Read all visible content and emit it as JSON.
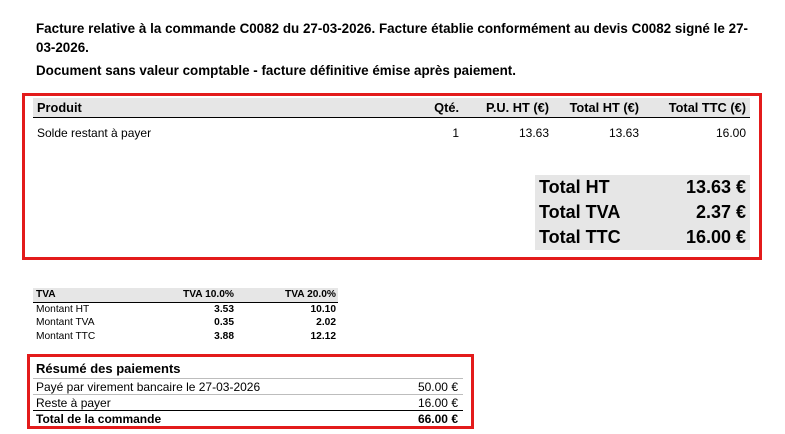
{
  "intro": {
    "line1": "Facture relative à la commande C0082 du 27-03-2026. Facture établie conformément au devis C0082 signé le 27-03-2026.",
    "line2": "Document sans valeur comptable - facture définitive émise après paiement."
  },
  "products": {
    "headers": {
      "name": "Produit",
      "qty": "Qté.",
      "pu_ht": "P.U. HT (€)",
      "total_ht": "Total HT (€)",
      "total_ttc": "Total TTC (€)"
    },
    "rows": [
      {
        "name": "Solde restant à payer",
        "qty": "1",
        "pu_ht": "13.63",
        "total_ht": "13.63",
        "total_ttc": "16.00"
      }
    ]
  },
  "totals": [
    {
      "label": "Total HT",
      "value": "13.63 €"
    },
    {
      "label": "Total TVA",
      "value": "2.37 €"
    },
    {
      "label": "Total TTC",
      "value": "16.00 €"
    }
  ],
  "vat": {
    "headers": [
      "TVA",
      "TVA 10.0%",
      "TVA 20.0%"
    ],
    "rows": [
      [
        "Montant HT",
        "3.53",
        "10.10"
      ],
      [
        "Montant TVA",
        "0.35",
        "2.02"
      ],
      [
        "Montant TTC",
        "3.88",
        "12.12"
      ]
    ]
  },
  "payments": {
    "title": "Résumé des paiements",
    "rows": [
      {
        "label": "Payé par virement bancaire  le 27-03-2026",
        "value": "50.00 €"
      },
      {
        "label": "Reste à payer",
        "value": "16.00 €"
      }
    ],
    "total": {
      "label": "Total de la commande",
      "value": "66.00 €"
    }
  },
  "colors": {
    "highlight_border": "#e31b1b",
    "header_bg": "#e6e6e6"
  }
}
